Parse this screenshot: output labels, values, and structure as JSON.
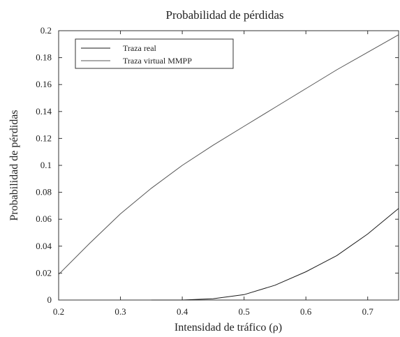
{
  "chart_data": {
    "type": "line",
    "title": "Probabilidad de pérdidas",
    "xlabel": "Intensidad de tráfico (ρ)",
    "ylabel": "Probabilidad de pérdidas",
    "xlim": [
      0.2,
      0.75
    ],
    "ylim": [
      0,
      0.2
    ],
    "x_ticks": [
      "0.2",
      "0.3",
      "0.4",
      "0.5",
      "0.6",
      "0.7"
    ],
    "y_ticks": [
      "0",
      "0.02",
      "0.04",
      "0.06",
      "0.08",
      "0.1",
      "0.12",
      "0.14",
      "0.16",
      "0.18",
      "0.2"
    ],
    "grid": false,
    "legend_position": "top-left",
    "series": [
      {
        "name": "Traza real",
        "color": "#1a1a1a",
        "x": [
          0.35,
          0.4,
          0.45,
          0.5,
          0.55,
          0.6,
          0.65,
          0.7,
          0.75
        ],
        "y": [
          0,
          0,
          0.001,
          0.004,
          0.011,
          0.021,
          0.033,
          0.049,
          0.068
        ]
      },
      {
        "name": "Traza virtual MMPP",
        "color": "#555555",
        "x": [
          0.2,
          0.25,
          0.3,
          0.35,
          0.4,
          0.45,
          0.5,
          0.55,
          0.6,
          0.65,
          0.7,
          0.75
        ],
        "y": [
          0.019,
          0.042,
          0.064,
          0.083,
          0.1,
          0.115,
          0.129,
          0.143,
          0.157,
          0.171,
          0.184,
          0.197
        ]
      }
    ]
  }
}
